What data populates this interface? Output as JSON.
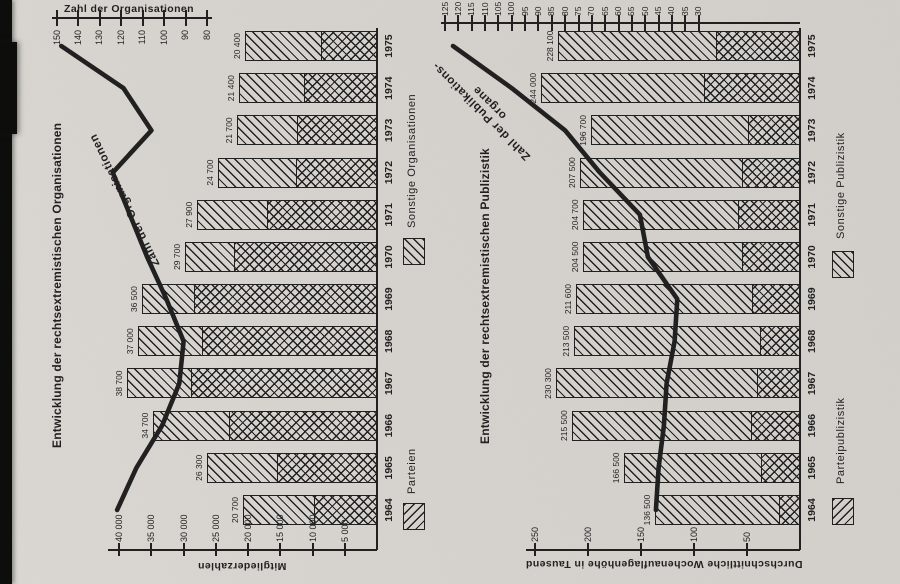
{
  "scan": {
    "paper_color": "#d6d3ce",
    "ink_color": "#1b1b1b",
    "note_layout": "two charts printed rotated 90 degrees counter-clockwise on the scanned page"
  },
  "chart_data": [
    {
      "type": "bar",
      "title": "Entwicklung der rechtsextremistischen Organisationen",
      "categories": [
        1964,
        1965,
        1966,
        1967,
        1968,
        1969,
        1970,
        1971,
        1972,
        1973,
        1974,
        1975
      ],
      "bar_totals": [
        20700,
        26300,
        34700,
        38700,
        37000,
        36500,
        29700,
        27900,
        24700,
        21700,
        21400,
        20400
      ],
      "bar_total_labels": [
        "20 700",
        "26 300",
        "34 700",
        "38 700",
        "37 000",
        "36 500",
        "29 700",
        "27 900",
        "24 700",
        "21 700",
        "21 400",
        "20 400"
      ],
      "series": [
        {
          "name": "Parteien",
          "hatch": "\\",
          "values_est": [
            9600,
            15300,
            22800,
            28700,
            27000,
            28200,
            22000,
            16900,
            12400,
            12200,
            11200,
            8500
          ]
        },
        {
          "name": "Sonstige Organisationen",
          "hatch": "/",
          "values_est": [
            11100,
            11000,
            11900,
            10000,
            10000,
            8300,
            7700,
            11000,
            12300,
            9500,
            10200,
            11900
          ]
        }
      ],
      "bar_axis": {
        "label": "Mitgliederzahlen",
        "ticks": [
          40000,
          35000,
          30000,
          25000,
          20000,
          15000,
          10000,
          5000
        ],
        "tick_labels": [
          "40 000",
          "35 000",
          "30 000",
          "25 000",
          "20 000",
          "15 000",
          "10 000",
          "5 000"
        ]
      },
      "line": {
        "label": "Zahl der Organisationen",
        "axis_label": "Zahl der Organisationen",
        "values": [
          122,
          113,
          101,
          93,
          91,
          99,
          108,
          116,
          124,
          106,
          119,
          148
        ],
        "axis_ticks": [
          150,
          140,
          130,
          120,
          110,
          100,
          90,
          80
        ],
        "axis_tick_labels": [
          "150",
          "140",
          "130",
          "120",
          "110",
          "100",
          "90",
          "80"
        ],
        "axis_range": [
          80,
          150
        ]
      },
      "legend": [
        {
          "label": "Parteien",
          "hatch": "\\"
        },
        {
          "label": "Sonstige Organisationen",
          "hatch": "/"
        }
      ]
    },
    {
      "type": "bar",
      "title": "Entwicklung der rechtsextremistischen Publizistik",
      "categories": [
        1964,
        1965,
        1966,
        1967,
        1968,
        1969,
        1970,
        1971,
        1972,
        1973,
        1974,
        1975
      ],
      "bar_totals": [
        136500,
        166500,
        215500,
        230300,
        213500,
        211600,
        204500,
        204700,
        207500,
        196700,
        244000,
        228100
      ],
      "bar_total_labels": [
        "136 500",
        "166 500",
        "215 500",
        "230 300",
        "213 500",
        "211 600",
        "204 500",
        "204 700",
        "207 500",
        "196 700",
        "244 000",
        "228 100"
      ],
      "series": [
        {
          "name": "Parteipublizistik",
          "hatch": "\\",
          "values_est_thousand": [
            19,
            36,
            45,
            40,
            37,
            44,
            54,
            58,
            54,
            48,
            90,
            78
          ]
        },
        {
          "name": "Sonstige Publizistik",
          "hatch": "/",
          "values_est_thousand": [
            117.5,
            130.5,
            170.5,
            190.3,
            176.5,
            167.6,
            150.5,
            146.7,
            153.5,
            148.7,
            154,
            150.1
          ]
        }
      ],
      "bar_axis": {
        "label": "Durchschnittliche Wochenauflagenhöhe in Tausend",
        "ticks": [
          250,
          200,
          150,
          100,
          50
        ],
        "tick_labels": [
          "250",
          "200",
          "150",
          "100",
          "50"
        ]
      },
      "line": {
        "label_line1": "Zahl der Publikations-",
        "label_line2": "organe",
        "values": [
          46,
          45,
          43,
          42,
          39,
          38,
          49,
          52,
          67,
          80,
          100,
          122
        ],
        "axis_ticks": [
          125,
          120,
          115,
          110,
          105,
          100,
          95,
          90,
          85,
          80,
          75,
          70,
          65,
          60,
          55,
          50,
          45,
          40,
          35,
          30
        ],
        "axis_tick_labels": [
          "125",
          "120",
          "115",
          "110",
          "105",
          "100",
          "95",
          "90",
          "85",
          "80",
          "75",
          "70",
          "65",
          "60",
          "55",
          "50",
          "45",
          "40",
          "35",
          "30"
        ],
        "axis_range": [
          30,
          125
        ]
      },
      "legend": [
        {
          "label": "Parteipublizistik",
          "hatch": "\\"
        },
        {
          "label": "Sonstige Publizistik",
          "hatch": "/"
        }
      ]
    }
  ]
}
